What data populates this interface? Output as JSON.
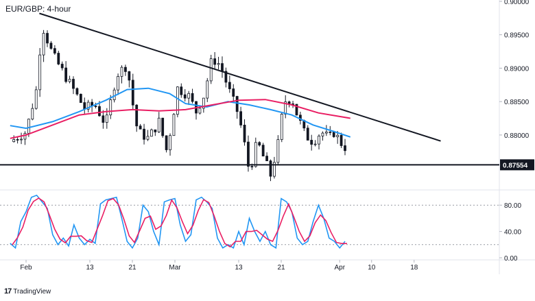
{
  "chart_data": {
    "type": "candlestick",
    "title": "EUR/GBP: 4-hour",
    "price_axis": {
      "range": [
        0.8725,
        0.9002
      ],
      "ticks": [
        {
          "value": 0.9,
          "label": "0.90000"
        },
        {
          "value": 0.895,
          "label": "0.89500"
        },
        {
          "value": 0.89,
          "label": "0.89000"
        },
        {
          "value": 0.885,
          "label": "0.88500"
        },
        {
          "value": 0.88,
          "label": "0.88000"
        }
      ]
    },
    "support_level": {
      "value": 0.87554,
      "label": "0.87554"
    },
    "time_axis": {
      "ticks": [
        {
          "t": 0.0,
          "label": "Feb"
        },
        {
          "t": 12.0,
          "label": "13"
        },
        {
          "t": 20.0,
          "label": "21"
        },
        {
          "t": 28.0,
          "label": "Mar"
        },
        {
          "t": 40.0,
          "label": "13"
        },
        {
          "t": 48.0,
          "label": "21"
        },
        {
          "t": 59.0,
          "label": "Apr"
        },
        {
          "t": 65.0,
          "label": "10"
        },
        {
          "t": 73.0,
          "label": "18"
        }
      ]
    },
    "trendline": {
      "from": {
        "t": 2.5,
        "price": 0.8982
      },
      "to": {
        "t": 78.0,
        "price": 0.8791
      }
    },
    "key_prices": [
      {
        "t": -3.0,
        "price": 0.879
      },
      {
        "t": 0.0,
        "price": 0.8805
      },
      {
        "t": 2.0,
        "price": 0.887
      },
      {
        "t": 3.0,
        "price": 0.8965
      },
      {
        "t": 5.0,
        "price": 0.892
      },
      {
        "t": 8.0,
        "price": 0.888
      },
      {
        "t": 11.0,
        "price": 0.884
      },
      {
        "t": 13.0,
        "price": 0.8845
      },
      {
        "t": 15.0,
        "price": 0.8815
      },
      {
        "t": 17.0,
        "price": 0.889
      },
      {
        "t": 19.0,
        "price": 0.8905
      },
      {
        "t": 20.0,
        "price": 0.885
      },
      {
        "t": 21.0,
        "price": 0.8805
      },
      {
        "t": 23.0,
        "price": 0.8795
      },
      {
        "t": 25.0,
        "price": 0.882
      },
      {
        "t": 26.5,
        "price": 0.8775
      },
      {
        "t": 28.5,
        "price": 0.887
      },
      {
        "t": 30.5,
        "price": 0.886
      },
      {
        "t": 32.0,
        "price": 0.8835
      },
      {
        "t": 33.5,
        "price": 0.886
      },
      {
        "t": 35.0,
        "price": 0.8915
      },
      {
        "t": 36.5,
        "price": 0.8905
      },
      {
        "t": 38.5,
        "price": 0.886
      },
      {
        "t": 40.0,
        "price": 0.883
      },
      {
        "t": 41.0,
        "price": 0.879
      },
      {
        "t": 42.0,
        "price": 0.8745
      },
      {
        "t": 43.5,
        "price": 0.879
      },
      {
        "t": 45.0,
        "price": 0.876
      },
      {
        "t": 46.0,
        "price": 0.874
      },
      {
        "t": 47.5,
        "price": 0.879
      },
      {
        "t": 48.5,
        "price": 0.885
      },
      {
        "t": 50.0,
        "price": 0.8855
      },
      {
        "t": 51.0,
        "price": 0.883
      },
      {
        "t": 52.5,
        "price": 0.88
      },
      {
        "t": 54.0,
        "price": 0.879
      },
      {
        "t": 55.5,
        "price": 0.8805
      },
      {
        "t": 57.0,
        "price": 0.8795
      },
      {
        "t": 58.0,
        "price": 0.8805
      },
      {
        "t": 59.0,
        "price": 0.879
      },
      {
        "t": 60.0,
        "price": 0.8782
      }
    ],
    "moving_averages": [
      {
        "color": "#2196f3",
        "points": [
          {
            "t": -3.0,
            "price": 0.8814
          },
          {
            "t": 0.0,
            "price": 0.881
          },
          {
            "t": 5.0,
            "price": 0.882
          },
          {
            "t": 10.0,
            "price": 0.8835
          },
          {
            "t": 15.0,
            "price": 0.8852
          },
          {
            "t": 19.0,
            "price": 0.8868
          },
          {
            "t": 23.0,
            "price": 0.887
          },
          {
            "t": 27.0,
            "price": 0.8862
          },
          {
            "t": 30.0,
            "price": 0.8847
          },
          {
            "t": 34.0,
            "price": 0.8842
          },
          {
            "t": 38.0,
            "price": 0.885
          },
          {
            "t": 42.0,
            "price": 0.8845
          },
          {
            "t": 46.0,
            "price": 0.8838
          },
          {
            "t": 50.0,
            "price": 0.883
          },
          {
            "t": 54.0,
            "price": 0.8815
          },
          {
            "t": 58.0,
            "price": 0.8805
          },
          {
            "t": 61.0,
            "price": 0.8797
          }
        ]
      },
      {
        "color": "#e91e63",
        "points": [
          {
            "t": -3.0,
            "price": 0.8795
          },
          {
            "t": 0.0,
            "price": 0.88
          },
          {
            "t": 5.0,
            "price": 0.8815
          },
          {
            "t": 10.0,
            "price": 0.883
          },
          {
            "t": 15.0,
            "price": 0.8835
          },
          {
            "t": 20.0,
            "price": 0.8838
          },
          {
            "t": 25.0,
            "price": 0.8836
          },
          {
            "t": 30.0,
            "price": 0.8838
          },
          {
            "t": 35.0,
            "price": 0.8845
          },
          {
            "t": 40.0,
            "price": 0.8852
          },
          {
            "t": 45.0,
            "price": 0.8853
          },
          {
            "t": 50.0,
            "price": 0.8845
          },
          {
            "t": 55.0,
            "price": 0.8833
          },
          {
            "t": 61.0,
            "price": 0.8825
          }
        ]
      }
    ],
    "stochastic": {
      "range": [
        0,
        100
      ],
      "ticks": [
        {
          "value": 80,
          "label": "80.00"
        },
        {
          "value": 40,
          "label": "40.00"
        },
        {
          "value": 0,
          "label": "0.00"
        }
      ],
      "dashed_levels": [
        80,
        20
      ],
      "k_color": "#2196f3",
      "d_color": "#e91e63",
      "key_points": [
        {
          "t": -3.0,
          "v": 22
        },
        {
          "t": -2.0,
          "v": 15
        },
        {
          "t": -1.0,
          "v": 55
        },
        {
          "t": 0.0,
          "v": 70
        },
        {
          "t": 1.0,
          "v": 92
        },
        {
          "t": 2.0,
          "v": 95
        },
        {
          "t": 3.0,
          "v": 85
        },
        {
          "t": 4.0,
          "v": 75
        },
        {
          "t": 5.0,
          "v": 35
        },
        {
          "t": 6.0,
          "v": 20
        },
        {
          "t": 7.0,
          "v": 30
        },
        {
          "t": 8.0,
          "v": 18
        },
        {
          "t": 9.0,
          "v": 50
        },
        {
          "t": 10.0,
          "v": 30
        },
        {
          "t": 11.0,
          "v": 20
        },
        {
          "t": 12.0,
          "v": 28
        },
        {
          "t": 13.0,
          "v": 22
        },
        {
          "t": 14.0,
          "v": 82
        },
        {
          "t": 15.0,
          "v": 88
        },
        {
          "t": 16.0,
          "v": 90
        },
        {
          "t": 17.0,
          "v": 92
        },
        {
          "t": 18.0,
          "v": 60
        },
        {
          "t": 19.0,
          "v": 25
        },
        {
          "t": 20.0,
          "v": 15
        },
        {
          "t": 21.0,
          "v": 30
        },
        {
          "t": 22.0,
          "v": 80
        },
        {
          "t": 23.0,
          "v": 70
        },
        {
          "t": 24.0,
          "v": 40
        },
        {
          "t": 25.0,
          "v": 20
        },
        {
          "t": 26.0,
          "v": 85
        },
        {
          "t": 27.0,
          "v": 88
        },
        {
          "t": 28.0,
          "v": 90
        },
        {
          "t": 29.0,
          "v": 50
        },
        {
          "t": 30.0,
          "v": 25
        },
        {
          "t": 31.0,
          "v": 35
        },
        {
          "t": 32.0,
          "v": 88
        },
        {
          "t": 33.0,
          "v": 92
        },
        {
          "t": 34.0,
          "v": 85
        },
        {
          "t": 35.0,
          "v": 75
        },
        {
          "t": 36.0,
          "v": 30
        },
        {
          "t": 37.0,
          "v": 15
        },
        {
          "t": 38.0,
          "v": 20
        },
        {
          "t": 39.0,
          "v": 15
        },
        {
          "t": 40.0,
          "v": 40
        },
        {
          "t": 41.0,
          "v": 20
        },
        {
          "t": 42.0,
          "v": 60
        },
        {
          "t": 43.0,
          "v": 40
        },
        {
          "t": 44.0,
          "v": 25
        },
        {
          "t": 45.0,
          "v": 40
        },
        {
          "t": 46.0,
          "v": 20
        },
        {
          "t": 47.0,
          "v": 15
        },
        {
          "t": 48.0,
          "v": 90
        },
        {
          "t": 49.0,
          "v": 85
        },
        {
          "t": 50.0,
          "v": 70
        },
        {
          "t": 51.0,
          "v": 30
        },
        {
          "t": 52.0,
          "v": 20
        },
        {
          "t": 53.0,
          "v": 25
        },
        {
          "t": 54.0,
          "v": 55
        },
        {
          "t": 55.0,
          "v": 80
        },
        {
          "t": 56.0,
          "v": 60
        },
        {
          "t": 57.0,
          "v": 30
        },
        {
          "t": 58.0,
          "v": 25
        },
        {
          "t": 59.0,
          "v": 15
        },
        {
          "t": 60.0,
          "v": 25
        }
      ]
    }
  },
  "branding": {
    "logo_mark": "17",
    "logo_text": "TradingView"
  }
}
